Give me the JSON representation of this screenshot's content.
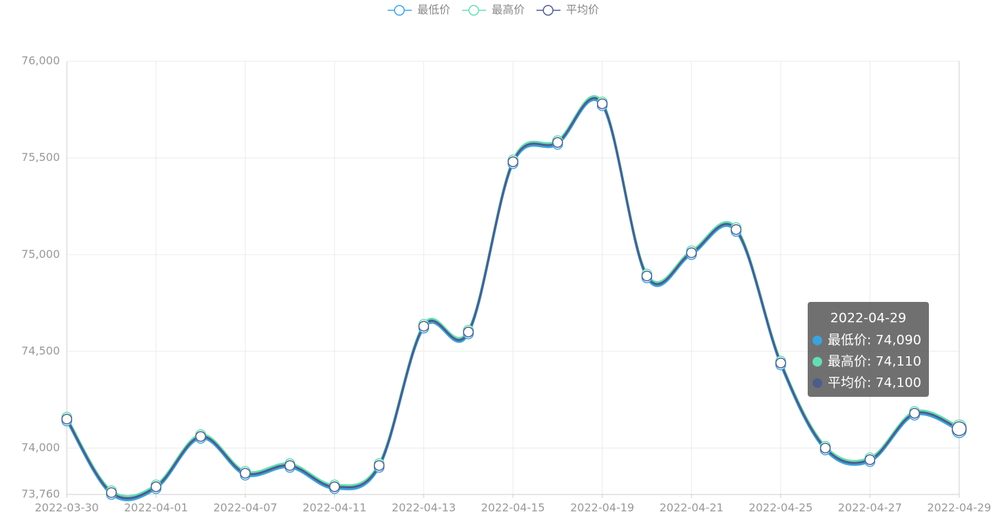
{
  "chart_data": {
    "type": "line",
    "smooth": true,
    "categories": [
      "2022-03-30",
      null,
      "2022-04-01",
      null,
      "2022-04-07",
      null,
      "2022-04-11",
      null,
      "2022-04-13",
      null,
      "2022-04-15",
      null,
      "2022-04-19",
      null,
      "2022-04-21",
      null,
      "2022-04-25",
      null,
      "2022-04-27",
      null,
      "2022-04-29"
    ],
    "series": [
      {
        "name": "最低价",
        "color": "#3ba3dc",
        "values": [
          74140,
          73760,
          73790,
          74050,
          73860,
          73900,
          73790,
          73900,
          74620,
          74590,
          75470,
          75570,
          75770,
          74880,
          75000,
          75120,
          74430,
          73990,
          73930,
          74170,
          74090
        ]
      },
      {
        "name": "最高价",
        "color": "#62deb6",
        "values": [
          74160,
          73780,
          73810,
          74070,
          73880,
          73920,
          73810,
          73920,
          74640,
          74610,
          75490,
          75590,
          75790,
          74900,
          75020,
          75140,
          74450,
          74010,
          73950,
          74190,
          74110
        ]
      },
      {
        "name": "平均价",
        "color": "#4f5b8a",
        "values": [
          74150,
          73770,
          73800,
          74060,
          73870,
          73910,
          73800,
          73910,
          74630,
          74600,
          75480,
          75580,
          75780,
          74890,
          75010,
          75130,
          74440,
          74000,
          73940,
          74180,
          74100
        ]
      }
    ],
    "ylim": [
      73760,
      76000
    ],
    "yticks": [
      {
        "value": 73760,
        "label": "73,760"
      },
      {
        "value": 74000,
        "label": "74,000"
      },
      {
        "value": 74500,
        "label": "74,500"
      },
      {
        "value": 75000,
        "label": "75,000"
      },
      {
        "value": 75500,
        "label": "75,500"
      },
      {
        "value": 76000,
        "label": "76,000"
      }
    ],
    "grid": true,
    "legend": "top",
    "tooltip": {
      "index": 20,
      "title": "2022-04-29",
      "rows": [
        "最低价: 74,090",
        "最高价: 74,110",
        "平均价: 74,100"
      ]
    }
  }
}
